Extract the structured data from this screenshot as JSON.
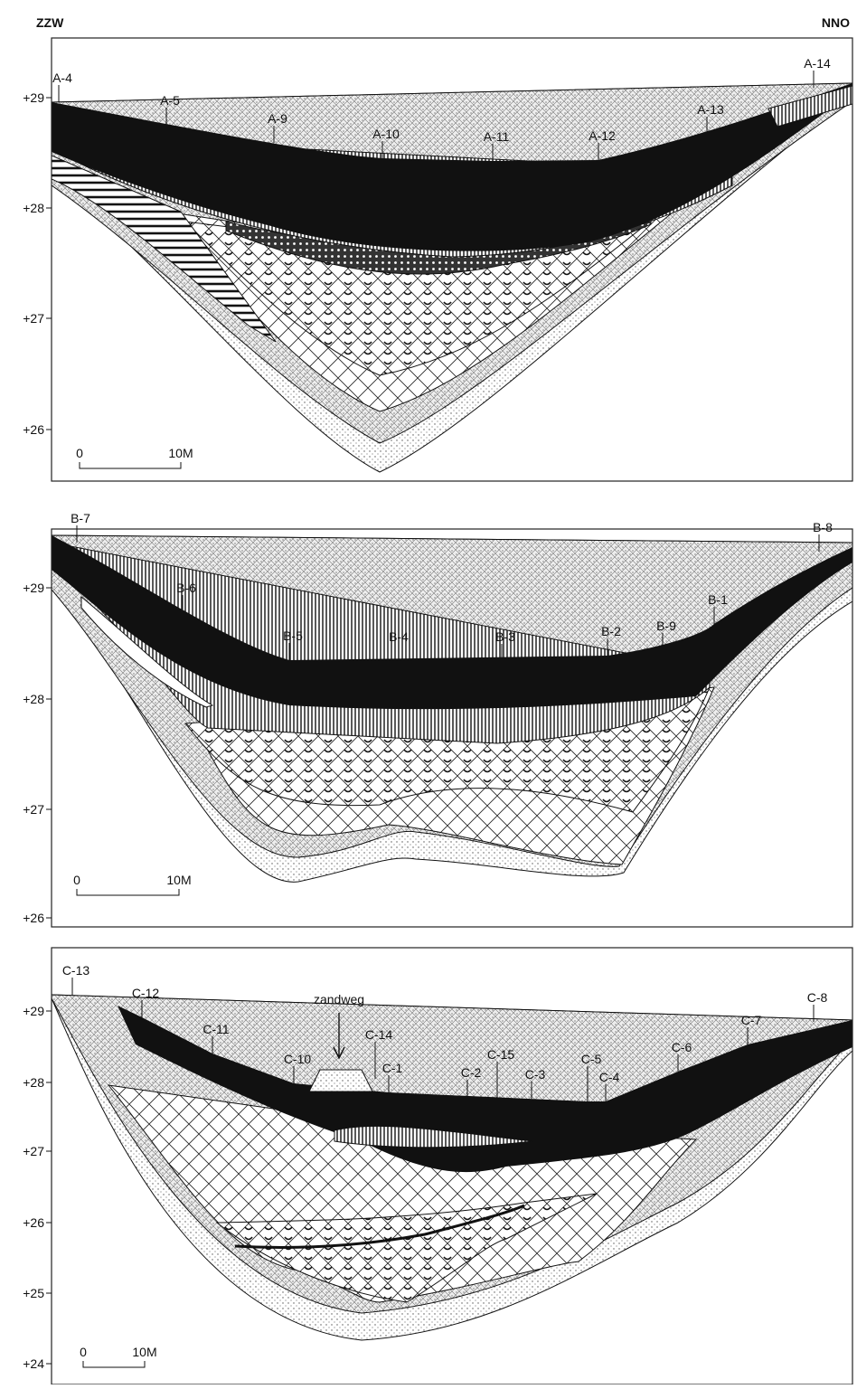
{
  "header": {
    "left": "ZZW",
    "right": "NNO"
  },
  "sections": [
    {
      "yticks": [
        "+29",
        "+28",
        "+27",
        "+26"
      ],
      "boreholes": [
        "A-4",
        "A-5",
        "A-9",
        "A-10",
        "A-11",
        "A-12",
        "A-13",
        "A-14"
      ],
      "scale": {
        "start": "0",
        "end": "10M"
      }
    },
    {
      "yticks": [
        "+29",
        "+28",
        "+27",
        "+26"
      ],
      "boreholes": [
        "B-7",
        "B-6",
        "B-5",
        "B-4",
        "B-3",
        "B-2",
        "B-9",
        "B-1",
        "B-8"
      ],
      "scale": {
        "start": "0",
        "end": "10M"
      }
    },
    {
      "yticks": [
        "+29",
        "+28",
        "+27",
        "+26",
        "+25",
        "+24"
      ],
      "boreholes": [
        "C-13",
        "C-12",
        "C-11",
        "C-10",
        "C-14",
        "C-1",
        "C-2",
        "C-15",
        "C-3",
        "C-5",
        "C-4",
        "C-6",
        "C-7",
        "C-8"
      ],
      "scale": {
        "start": "0",
        "end": "10M"
      },
      "annotation": "zandweg"
    }
  ]
}
